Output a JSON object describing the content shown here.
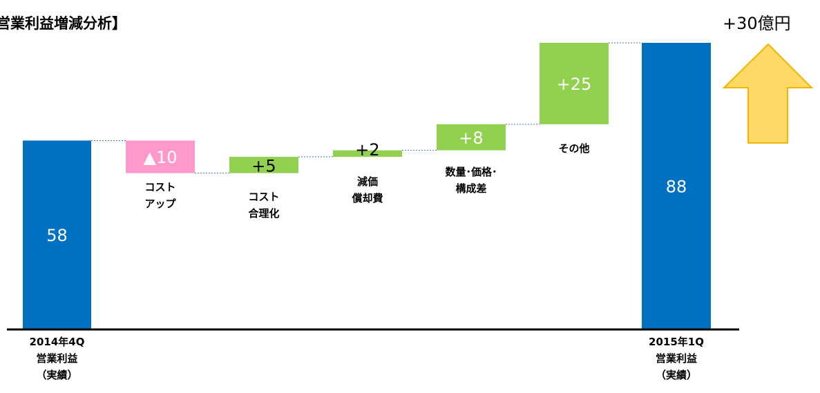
{
  "title": "営業利益増減分析】",
  "total_change": "+30億円",
  "colors": {
    "total_bar": "#0070c0",
    "increase_bar": "#92d050",
    "decrease_bar": "#ff99cc",
    "connector": "#4472c4",
    "arrow_fill": "#ffd966",
    "arrow_stroke": "#f4b400"
  },
  "chart_data": {
    "type": "bar",
    "subtype": "waterfall",
    "title": "営業利益増減分析】",
    "categories": [
      [
        "2014年4Q",
        "営業利益",
        "（実績）"
      ],
      [
        "コスト",
        "アップ"
      ],
      [
        "コスト",
        "合理化"
      ],
      [
        "減価",
        "償却費"
      ],
      [
        "数量･価格･",
        "構成差"
      ],
      [
        "その他"
      ],
      [
        "2015年1Q",
        "営業利益",
        "（実績）"
      ]
    ],
    "values": [
      58,
      -10,
      5,
      2,
      8,
      25,
      88
    ],
    "value_labels": [
      "58",
      "▲10",
      "+5",
      "+2",
      "+8",
      "+25",
      "88"
    ],
    "kinds": [
      "total",
      "decrease",
      "increase",
      "increase",
      "increase",
      "increase",
      "total"
    ],
    "ylim": [
      0,
      90
    ],
    "xlabel": "",
    "ylabel": "",
    "grid": false,
    "legend": "none"
  }
}
